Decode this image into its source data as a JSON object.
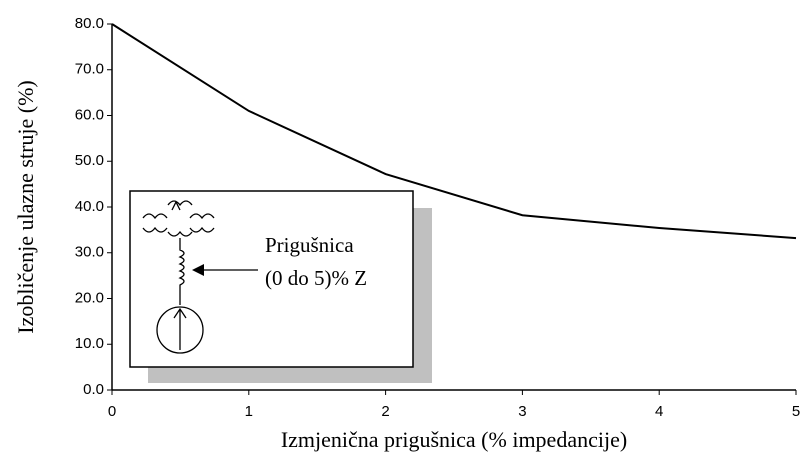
{
  "chart_data": {
    "type": "line",
    "xlabel": "Izmjenična prigušnica (% impedancije)",
    "ylabel": "Izobličenje ulazne struje (%)",
    "x": [
      0,
      1,
      2,
      3,
      4,
      5
    ],
    "values": [
      80,
      61,
      47.2,
      38.2,
      35.4,
      33.2
    ],
    "color": "#000000",
    "xlim": [
      0,
      5
    ],
    "xticks": [
      0,
      1,
      2,
      3,
      4,
      5
    ],
    "ylim": [
      0,
      80
    ],
    "yticks": [
      {
        "value": 0,
        "label": "0.0"
      },
      {
        "value": 10,
        "label": "10.0"
      },
      {
        "value": 20,
        "label": "20.0"
      },
      {
        "value": 30,
        "label": "30.0"
      },
      {
        "value": 40,
        "label": "40.0"
      },
      {
        "value": 50,
        "label": "50.0"
      },
      {
        "value": 60,
        "label": "60.0"
      },
      {
        "value": 70,
        "label": "70.0"
      },
      {
        "value": 80,
        "label": "80.0"
      }
    ],
    "grid": false,
    "annotations": [
      "Prigušnica",
      "(0 do 5)% Z"
    ]
  }
}
